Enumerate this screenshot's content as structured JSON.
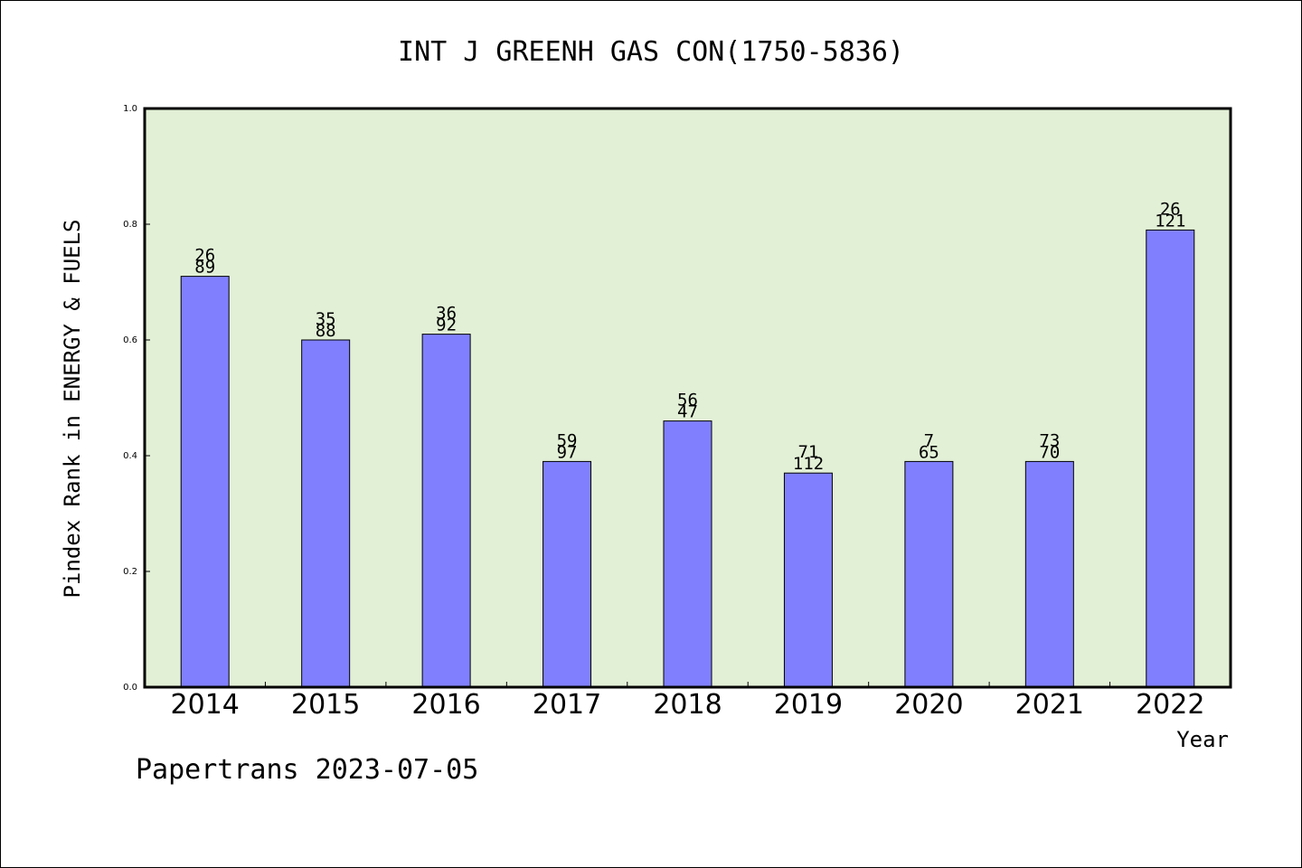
{
  "chart_data": {
    "type": "bar",
    "title": "INT J GREENH GAS CON(1750-5836)",
    "xlabel": "Year",
    "ylabel": "Pindex Rank in ENERGY & FUELS",
    "categories": [
      "2014",
      "2015",
      "2016",
      "2017",
      "2018",
      "2019",
      "2020",
      "2021",
      "2022"
    ],
    "values": [
      0.71,
      0.6,
      0.61,
      0.39,
      0.46,
      0.37,
      0.39,
      0.39,
      0.79
    ],
    "label_top": [
      "26",
      "35",
      "36",
      "59",
      "56",
      "71",
      "7",
      "73",
      "26"
    ],
    "label_bottom": [
      "89",
      "88",
      "92",
      "97",
      "47",
      "112",
      "65",
      "70",
      "121"
    ],
    "ylim": [
      0,
      1.0
    ],
    "yticks": [
      "0.0",
      "0.2",
      "0.4",
      "0.6",
      "0.8",
      "1.0"
    ],
    "grid": false,
    "colors": {
      "bar": "#8080ff",
      "plot_background": "#e2f0d6"
    }
  },
  "footer": {
    "text": "Papertrans 2023-07-05"
  }
}
